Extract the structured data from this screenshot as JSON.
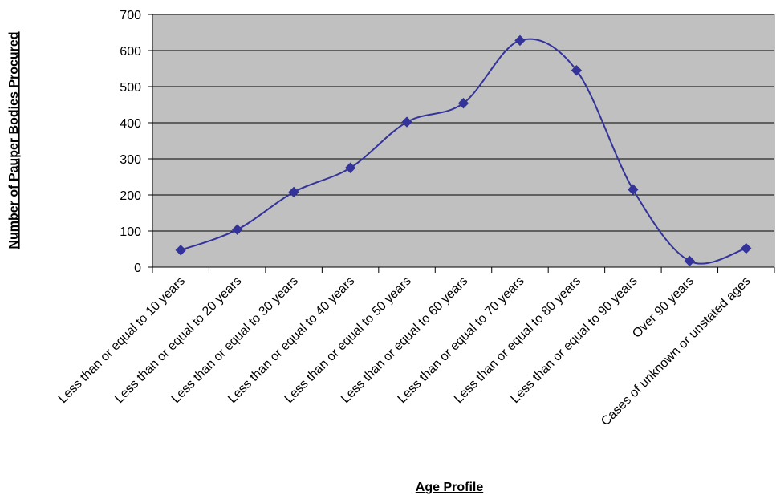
{
  "chart_data": {
    "type": "line",
    "title": "",
    "xlabel": "Age Profile",
    "ylabel": "Number of Pauper Bodies Procured",
    "ylim": [
      0,
      700
    ],
    "yticks": [
      0,
      100,
      200,
      300,
      400,
      500,
      600,
      700
    ],
    "grid": true,
    "smooth": true,
    "categories": [
      "Less than or equal to 10 years",
      "Less than or equal to 20 years",
      "Less than or equal to 30 years",
      "Less than or equal to 40 years",
      "Less than or equal to 50 years",
      "Less than or equal to 60 years",
      "Less than or equal to 70 years",
      "Less than or equal to 80 years",
      "Less than or equal to 90 years",
      "Over 90 years",
      "Cases of unknown or unstated ages"
    ],
    "series": [
      {
        "values": [
          47,
          104,
          208,
          275,
          402,
          454,
          628,
          545,
          215,
          17,
          52
        ],
        "color": "#333399",
        "marker": "diamond"
      }
    ],
    "colors": {
      "plot_bg": "#c0c0c0",
      "grid": "#000000",
      "line": "#333399"
    }
  }
}
